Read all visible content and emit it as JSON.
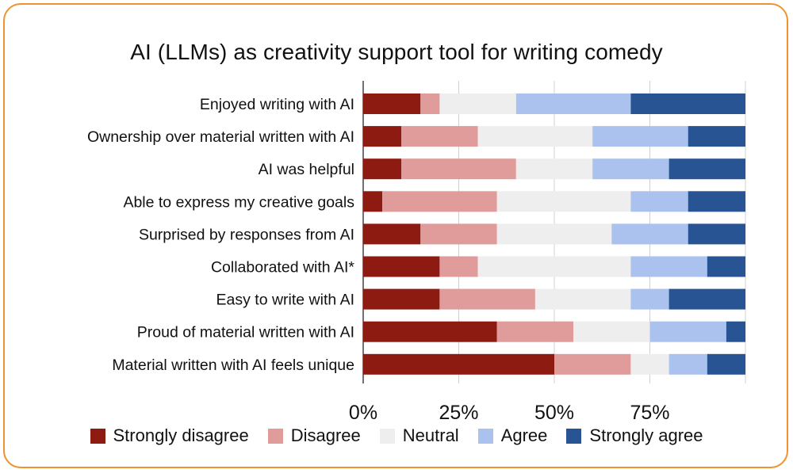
{
  "chart_data": {
    "type": "bar",
    "orientation": "horizontal",
    "stacked": true,
    "title": "AI (LLMs) as creativity support tool for writing comedy",
    "categories": [
      "Enjoyed writing with AI",
      "Ownership over material written with AI",
      "AI was helpful",
      "Able to express my creative goals",
      "Surprised by responses from AI",
      "Collaborated with AI*",
      "Easy to write with AI",
      "Proud of material written with AI",
      "Material written with AI feels unique"
    ],
    "series": [
      {
        "name": "Strongly disagree",
        "color": "#8e1b12",
        "values": [
          15,
          10,
          10,
          5,
          15,
          20,
          20,
          35,
          50
        ]
      },
      {
        "name": "Disagree",
        "color": "#e09b9b",
        "values": [
          5,
          20,
          30,
          30,
          20,
          10,
          25,
          20,
          20
        ]
      },
      {
        "name": "Neutral",
        "color": "#eeeeee",
        "values": [
          20,
          30,
          20,
          35,
          30,
          40,
          25,
          20,
          10
        ]
      },
      {
        "name": "Agree",
        "color": "#abc1ee",
        "values": [
          30,
          25,
          20,
          15,
          20,
          20,
          10,
          20,
          10
        ]
      },
      {
        "name": "Strongly agree",
        "color": "#285494",
        "values": [
          30,
          15,
          20,
          15,
          15,
          10,
          20,
          5,
          10
        ]
      }
    ],
    "x_ticks": [
      "0%",
      "25%",
      "50%",
      "75%"
    ],
    "xlim": [
      0,
      100
    ],
    "grid": true,
    "legend_position": "bottom"
  }
}
